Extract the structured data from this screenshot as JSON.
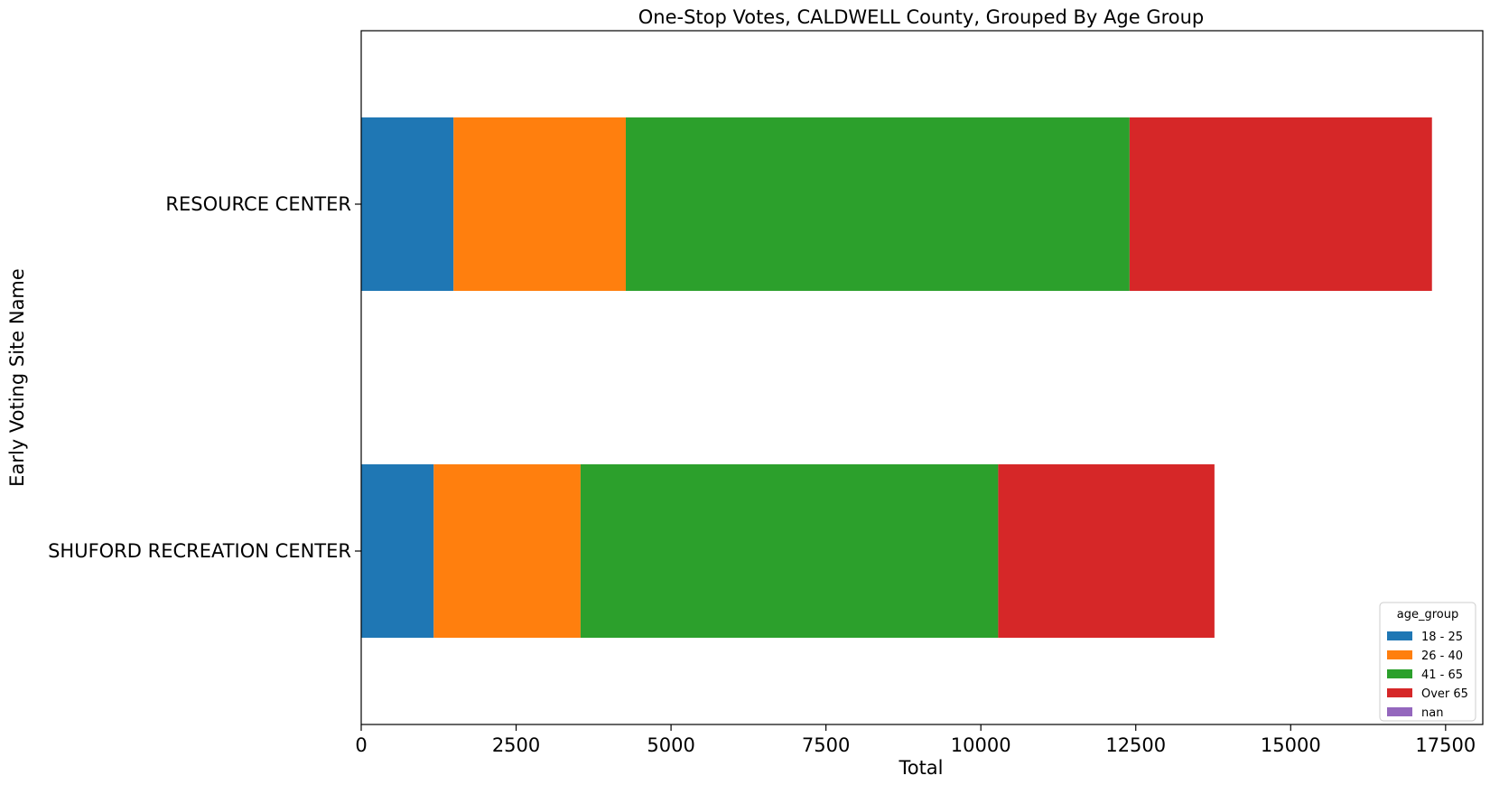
{
  "chart_data": {
    "type": "bar",
    "orientation": "horizontal",
    "stacked": true,
    "title": "One-Stop Votes, CALDWELL County, Grouped By Age Group",
    "xlabel": "Total",
    "ylabel": "Early Voting Site Name",
    "categories": [
      "RESOURCE CENTER",
      "SHUFORD RECREATION CENTER"
    ],
    "xlim": [
      0,
      18100
    ],
    "xticks": [
      0,
      2500,
      5000,
      7500,
      10000,
      12500,
      15000,
      17500
    ],
    "xtick_labels": [
      "0",
      "2500",
      "5000",
      "7500",
      "10000",
      "12500",
      "15000",
      "17500"
    ],
    "grid": false,
    "legend": {
      "title": "age_group",
      "position": "bottom-right"
    },
    "series": [
      {
        "name": "18 - 25",
        "color": "#1f77b4",
        "values": [
          1490,
          1170
        ]
      },
      {
        "name": "26 - 40",
        "color": "#ff7f0e",
        "values": [
          2780,
          2370
        ]
      },
      {
        "name": "41 - 65",
        "color": "#2ca02c",
        "values": [
          8130,
          6740
        ]
      },
      {
        "name": "Over 65",
        "color": "#d62728",
        "values": [
          4880,
          3490
        ]
      },
      {
        "name": "nan",
        "color": "#9467bd",
        "values": [
          0,
          0
        ]
      }
    ]
  }
}
